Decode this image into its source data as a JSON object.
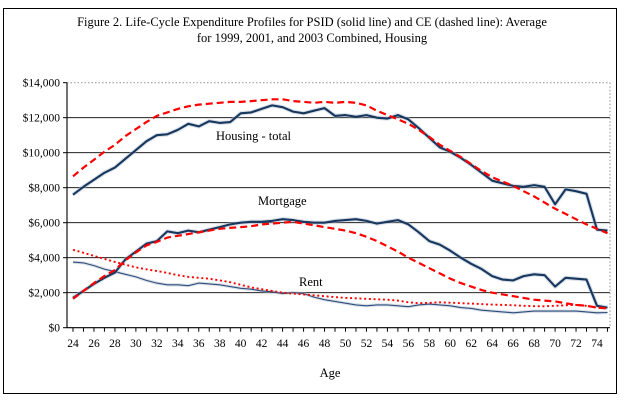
{
  "figure": {
    "title_line1": "Figure 2. Life-Cycle Expenditure Profiles for PSID (solid line) and CE (dashed line): Average",
    "title_line2": "for 1999, 2001, and 2003 Combined, Housing"
  },
  "colors": {
    "psid_line": "#17375E",
    "psid_halo": "#aebacc",
    "ce_line": "#FE0000",
    "gridline": "#000000",
    "dotted_frame": "#909090"
  },
  "chart_data": {
    "type": "line",
    "title": "Figure 2. Life-Cycle Expenditure Profiles for PSID (solid line) and CE (dashed line): Average for 1999, 2001, and 2003 Combined, Housing",
    "xlabel": "Age",
    "ylabel": "",
    "xlim": [
      23.5,
      75.5
    ],
    "ylim": [
      0,
      14000
    ],
    "grid": "horizontal",
    "legend": "inline-labels",
    "x_tick_labels": [
      "24",
      "26",
      "28",
      "30",
      "32",
      "34",
      "36",
      "38",
      "40",
      "42",
      "44",
      "46",
      "48",
      "50",
      "52",
      "54",
      "56",
      "58",
      "60",
      "62",
      "64",
      "66",
      "68",
      "70",
      "72",
      "74"
    ],
    "x_tick_values": [
      24,
      26,
      28,
      30,
      32,
      34,
      36,
      38,
      40,
      42,
      44,
      46,
      48,
      50,
      52,
      54,
      56,
      58,
      60,
      62,
      64,
      66,
      68,
      70,
      72,
      74
    ],
    "y_tick_labels": [
      "$0",
      "$2,000",
      "$4,000",
      "$6,000",
      "$8,000",
      "$10,000",
      "$12,000",
      "$14,000"
    ],
    "y_tick_values": [
      0,
      2000,
      4000,
      6000,
      8000,
      10000,
      12000,
      14000
    ],
    "labels": {
      "housing": "Housing - total",
      "mortgage": "Mortgage",
      "rent": "Rent"
    },
    "x": [
      24,
      25,
      26,
      27,
      28,
      29,
      30,
      31,
      32,
      33,
      34,
      35,
      36,
      37,
      38,
      39,
      40,
      41,
      42,
      43,
      44,
      45,
      46,
      47,
      48,
      49,
      50,
      51,
      52,
      53,
      54,
      55,
      56,
      57,
      58,
      59,
      60,
      61,
      62,
      63,
      64,
      65,
      66,
      67,
      68,
      69,
      70,
      71,
      72,
      73,
      74,
      75
    ],
    "series": [
      {
        "name": "Housing - total PSID",
        "source": "PSID",
        "line": "solid",
        "color": "#17375E",
        "values": [
          7600,
          8050,
          8450,
          8850,
          9150,
          9650,
          10150,
          10650,
          11000,
          11050,
          11300,
          11650,
          11500,
          11800,
          11700,
          11750,
          12250,
          12300,
          12500,
          12700,
          12600,
          12350,
          12250,
          12400,
          12550,
          12100,
          12150,
          12050,
          12150,
          12000,
          11950,
          12150,
          11900,
          11400,
          10850,
          10300,
          10050,
          9700,
          9300,
          8850,
          8400,
          8250,
          8100,
          8050,
          8150,
          8050,
          7050,
          7900,
          7800,
          7650,
          5600,
          5550
        ]
      },
      {
        "name": "Housing - total CE",
        "source": "CE",
        "line": "dashed",
        "color": "#FE0000",
        "values": [
          8650,
          9150,
          9600,
          10050,
          10450,
          10950,
          11350,
          11750,
          12100,
          12300,
          12500,
          12650,
          12750,
          12800,
          12850,
          12900,
          12900,
          12950,
          13000,
          13050,
          13050,
          12950,
          12900,
          12850,
          12900,
          12850,
          12900,
          12850,
          12700,
          12400,
          12150,
          11900,
          11650,
          11300,
          10900,
          10450,
          10100,
          9750,
          9350,
          8950,
          8600,
          8350,
          8100,
          7800,
          7500,
          7150,
          6800,
          6500,
          6200,
          5900,
          5650,
          5400
        ]
      },
      {
        "name": "Mortgage PSID",
        "source": "PSID",
        "line": "solid",
        "color": "#17375E",
        "values": [
          1700,
          2100,
          2500,
          2850,
          3150,
          3900,
          4350,
          4800,
          4950,
          5500,
          5400,
          5550,
          5450,
          5600,
          5750,
          5900,
          6000,
          6050,
          6050,
          6100,
          6200,
          6150,
          6050,
          6000,
          6000,
          6100,
          6150,
          6200,
          6100,
          5950,
          6050,
          6150,
          5900,
          5450,
          4950,
          4750,
          4400,
          4000,
          3650,
          3350,
          2950,
          2750,
          2700,
          2950,
          3050,
          3000,
          2350,
          2850,
          2800,
          2750,
          1250,
          1150
        ]
      },
      {
        "name": "Mortgage CE",
        "source": "CE",
        "line": "dashed",
        "color": "#FE0000",
        "values": [
          1650,
          2100,
          2550,
          2950,
          3300,
          3850,
          4300,
          4700,
          4900,
          5150,
          5250,
          5350,
          5450,
          5550,
          5650,
          5700,
          5750,
          5800,
          5900,
          5950,
          6000,
          6050,
          5950,
          5850,
          5750,
          5650,
          5550,
          5400,
          5200,
          4950,
          4650,
          4350,
          4000,
          3700,
          3400,
          3100,
          2800,
          2550,
          2350,
          2150,
          2000,
          1900,
          1800,
          1700,
          1600,
          1550,
          1500,
          1400,
          1300,
          1250,
          1150,
          1100
        ]
      },
      {
        "name": "Rent PSID",
        "source": "PSID",
        "line": "thin",
        "color": "#2e4d7b",
        "values": [
          3750,
          3700,
          3550,
          3350,
          3200,
          3050,
          2900,
          2700,
          2550,
          2450,
          2450,
          2400,
          2550,
          2500,
          2450,
          2350,
          2250,
          2200,
          2100,
          2050,
          1950,
          2000,
          1950,
          1750,
          1600,
          1500,
          1400,
          1300,
          1250,
          1300,
          1300,
          1250,
          1200,
          1300,
          1350,
          1300,
          1250,
          1150,
          1100,
          1000,
          950,
          900,
          850,
          900,
          950,
          950,
          950,
          950,
          950,
          900,
          850,
          870
        ]
      },
      {
        "name": "Rent CE",
        "source": "CE",
        "line": "dotted",
        "color": "#FE0000",
        "values": [
          4450,
          4280,
          4100,
          3930,
          3760,
          3600,
          3450,
          3340,
          3240,
          3130,
          3000,
          2900,
          2850,
          2800,
          2700,
          2600,
          2450,
          2300,
          2200,
          2100,
          2000,
          1950,
          1900,
          1850,
          1800,
          1750,
          1700,
          1680,
          1650,
          1620,
          1600,
          1550,
          1450,
          1400,
          1420,
          1450,
          1430,
          1400,
          1380,
          1350,
          1320,
          1300,
          1280,
          1250,
          1230,
          1220,
          1250,
          1280,
          1300,
          1250,
          1150,
          1100
        ]
      }
    ]
  }
}
